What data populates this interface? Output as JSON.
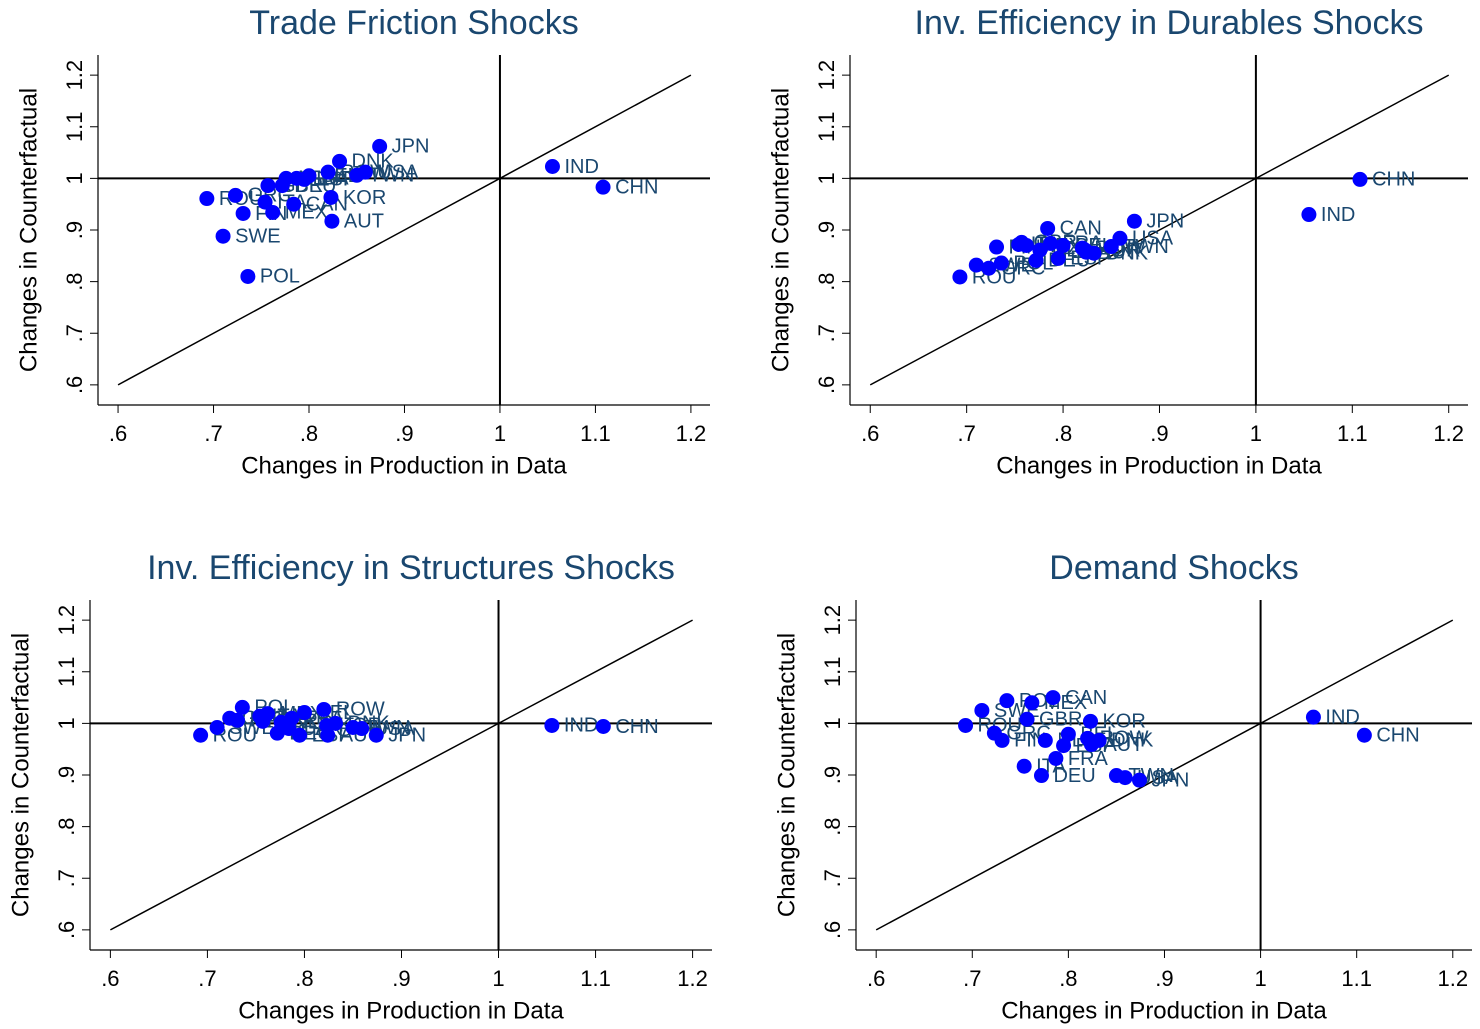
{
  "chart_data": [
    {
      "type": "scatter",
      "title": "Trade Friction Shocks",
      "x_label": "Changes in Production in Data",
      "y_label": "Changes in Counterfactual",
      "labels": [
        "ROU",
        "SWE",
        "GRC",
        "FIN",
        "POL",
        "ITA",
        "GBR",
        "MEX",
        "DEU",
        "NLD",
        "CAN",
        "FRA",
        "ESP",
        "BEL",
        "ROW",
        "KOR",
        "AUT",
        "DNK",
        "TWN",
        "USA",
        "JPN",
        "IND",
        "CHN"
      ],
      "x": [
        0.693,
        0.71,
        0.723,
        0.731,
        0.736,
        0.754,
        0.757,
        0.762,
        0.772,
        0.776,
        0.784,
        0.787,
        0.795,
        0.8,
        0.82,
        0.823,
        0.824,
        0.832,
        0.85,
        0.859,
        0.874,
        1.055,
        1.108
      ],
      "values": [
        0.961,
        0.888,
        0.967,
        0.932,
        0.81,
        0.954,
        0.986,
        0.934,
        0.986,
        1.0,
        0.95,
        1.0,
        0.998,
        1.005,
        1.012,
        0.963,
        0.917,
        1.033,
        1.006,
        1.012,
        1.062,
        1.023,
        0.983
      ],
      "color": "#0000ff",
      "label_color": "#1a476f",
      "xlim": [
        0.579,
        1.22
      ],
      "ylim": [
        0.561,
        1.239
      ],
      "xticks": [
        {
          "value": 0.6,
          "label": ".6"
        },
        {
          "value": 0.7,
          "label": ".7"
        },
        {
          "value": 0.8,
          "label": ".8"
        },
        {
          "value": 0.9,
          "label": ".9"
        },
        1,
        1.1,
        1.2
      ],
      "yticks": [
        {
          "value": 0.6,
          "label": ".6"
        },
        {
          "value": 0.7,
          "label": ".7"
        },
        {
          "value": 0.8,
          "label": ".8"
        },
        {
          "value": 0.9,
          "label": ".9"
        },
        1,
        1.1,
        1.2
      ],
      "reference_lines": {
        "x": 1,
        "y": 1,
        "diagonal": true
      }
    },
    {
      "type": "scatter",
      "title": "Inv. Efficiency in Durables Shocks",
      "x_label": "Changes in Production in Data",
      "y_label": "Changes in Counterfactual",
      "labels": [
        "ROU",
        "SWE",
        "GRC",
        "FIN",
        "POL",
        "ITA",
        "GBR",
        "MEX",
        "DEU",
        "NLD",
        "CAN",
        "FRA",
        "ESP",
        "BEL",
        "ROW",
        "KOR",
        "AUT",
        "DNK",
        "TWN",
        "USA",
        "JPN",
        "IND",
        "CHN"
      ],
      "x": [
        0.693,
        0.71,
        0.723,
        0.731,
        0.736,
        0.754,
        0.757,
        0.762,
        0.772,
        0.776,
        0.784,
        0.787,
        0.795,
        0.8,
        0.82,
        0.823,
        0.824,
        0.832,
        0.85,
        0.859,
        0.874,
        1.055,
        1.108
      ],
      "values": [
        0.809,
        0.832,
        0.826,
        0.867,
        0.836,
        0.872,
        0.876,
        0.87,
        0.841,
        0.861,
        0.903,
        0.874,
        0.845,
        0.87,
        0.865,
        0.861,
        0.857,
        0.855,
        0.868,
        0.884,
        0.917,
        0.93,
        0.998
      ],
      "color": "#0000ff",
      "label_color": "#1a476f",
      "xlim": [
        0.579,
        1.22
      ],
      "ylim": [
        0.561,
        1.239
      ],
      "xticks": [
        {
          "value": 0.6,
          "label": ".6"
        },
        {
          "value": 0.7,
          "label": ".7"
        },
        {
          "value": 0.8,
          "label": ".8"
        },
        {
          "value": 0.9,
          "label": ".9"
        },
        1,
        1.1,
        1.2
      ],
      "yticks": [
        {
          "value": 0.6,
          "label": ".6"
        },
        {
          "value": 0.7,
          "label": ".7"
        },
        {
          "value": 0.8,
          "label": ".8"
        },
        {
          "value": 0.9,
          "label": ".9"
        },
        1,
        1.1,
        1.2
      ],
      "reference_lines": {
        "x": 1,
        "y": 1,
        "diagonal": true
      }
    },
    {
      "type": "scatter",
      "title": "Inv. Efficiency in Structures Shocks",
      "x_label": "Changes in Production in Data",
      "y_label": "Changes in Counterfactual",
      "labels": [
        "ROU",
        "SWE",
        "GRC",
        "FIN",
        "POL",
        "ITA",
        "GBR",
        "MEX",
        "DEU",
        "NLD",
        "CAN",
        "FRA",
        "ESP",
        "BEL",
        "ROW",
        "KOR",
        "AUT",
        "DNK",
        "TWN",
        "USA",
        "JPN",
        "IND",
        "CHN"
      ],
      "x": [
        0.693,
        0.71,
        0.723,
        0.731,
        0.736,
        0.754,
        0.757,
        0.762,
        0.772,
        0.776,
        0.784,
        0.787,
        0.795,
        0.8,
        0.82,
        0.823,
        0.824,
        0.832,
        0.85,
        0.859,
        0.874,
        1.055,
        1.108
      ],
      "values": [
        0.977,
        0.992,
        1.01,
        1.006,
        1.031,
        1.014,
        1.004,
        1.019,
        0.981,
        1.002,
        0.99,
        1.01,
        0.977,
        1.021,
        1.027,
        0.996,
        0.977,
        1.0,
        0.992,
        0.99,
        0.977,
        0.996,
        0.994
      ],
      "color": "#0000ff",
      "label_color": "#1a476f",
      "xlim": [
        0.579,
        1.22
      ],
      "ylim": [
        0.561,
        1.239
      ],
      "xticks": [
        {
          "value": 0.6,
          "label": ".6"
        },
        {
          "value": 0.7,
          "label": ".7"
        },
        {
          "value": 0.8,
          "label": ".8"
        },
        {
          "value": 0.9,
          "label": ".9"
        },
        1,
        1.1,
        1.2
      ],
      "yticks": [
        {
          "value": 0.6,
          "label": ".6"
        },
        {
          "value": 0.7,
          "label": ".7"
        },
        {
          "value": 0.8,
          "label": ".8"
        },
        {
          "value": 0.9,
          "label": ".9"
        },
        1,
        1.1,
        1.2
      ],
      "reference_lines": {
        "x": 1,
        "y": 1,
        "diagonal": true
      }
    },
    {
      "type": "scatter",
      "title": "Demand Shocks",
      "x_label": "Changes in Production in Data",
      "y_label": "Changes in Counterfactual",
      "labels": [
        "ROU",
        "SWE",
        "GRC",
        "FIN",
        "POL",
        "ITA",
        "GBR",
        "MEX",
        "DEU",
        "NLD",
        "CAN",
        "FRA",
        "ESP",
        "BEL",
        "ROW",
        "KOR",
        "AUT",
        "DNK",
        "TWN",
        "USA",
        "JPN",
        "IND",
        "CHN"
      ],
      "x": [
        0.693,
        0.71,
        0.723,
        0.731,
        0.736,
        0.754,
        0.757,
        0.762,
        0.772,
        0.776,
        0.784,
        0.787,
        0.795,
        0.8,
        0.82,
        0.823,
        0.824,
        0.832,
        0.85,
        0.859,
        0.874,
        1.055,
        1.108
      ],
      "values": [
        0.996,
        1.025,
        0.981,
        0.967,
        1.044,
        0.917,
        1.008,
        1.04,
        0.899,
        0.967,
        1.05,
        0.932,
        0.957,
        0.979,
        0.971,
        1.004,
        0.959,
        0.967,
        0.899,
        0.895,
        0.89,
        1.012,
        0.977
      ],
      "color": "#0000ff",
      "label_color": "#1a476f",
      "xlim": [
        0.579,
        1.22
      ],
      "ylim": [
        0.561,
        1.239
      ],
      "xticks": [
        {
          "value": 0.6,
          "label": ".6"
        },
        {
          "value": 0.7,
          "label": ".7"
        },
        {
          "value": 0.8,
          "label": ".8"
        },
        {
          "value": 0.9,
          "label": ".9"
        },
        1,
        1.1,
        1.2
      ],
      "yticks": [
        {
          "value": 0.6,
          "label": ".6"
        },
        {
          "value": 0.7,
          "label": ".7"
        },
        {
          "value": 0.8,
          "label": ".8"
        },
        {
          "value": 0.9,
          "label": ".9"
        },
        1,
        1.1,
        1.2
      ],
      "reference_lines": {
        "x": 1,
        "y": 1,
        "diagonal": true
      }
    }
  ]
}
